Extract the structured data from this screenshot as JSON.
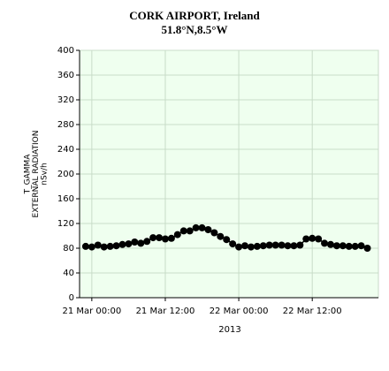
{
  "chart_data": {
    "type": "line",
    "title": "CORK AIRPORT, Ireland",
    "subtitle": "51.8°N,8.5°W",
    "ylabel": [
      "T_GAMMA",
      "EXTERNAL RADIATION",
      "nSv/h"
    ],
    "xlabel": "2013",
    "x": [
      -1,
      0,
      1,
      2,
      3,
      4,
      5,
      6,
      7,
      8,
      9,
      10,
      11,
      12,
      13,
      14,
      15,
      16,
      17,
      18,
      19,
      20,
      21,
      22,
      23,
      24,
      25,
      26,
      27,
      28,
      29,
      30,
      31,
      32,
      33,
      34,
      35,
      36,
      37,
      38,
      39,
      40,
      41,
      42,
      43,
      44,
      45
    ],
    "series": [
      {
        "name": "T_GAMMA",
        "color": "#000000",
        "values": [
          83,
          82,
          85,
          82,
          83,
          84,
          86,
          87,
          90,
          88,
          91,
          97,
          97,
          95,
          96,
          102,
          108,
          108,
          113,
          113,
          110,
          105,
          99,
          94,
          87,
          82,
          84,
          82,
          83,
          84,
          85,
          85,
          85,
          84,
          84,
          85,
          95,
          96,
          95,
          88,
          86,
          84,
          84,
          83,
          83,
          84,
          80
        ]
      }
    ],
    "xlim": [
      -2,
      46.8
    ],
    "xticks": [
      {
        "value": 0,
        "label": "21 Mar 00:00"
      },
      {
        "value": 12,
        "label": "21 Mar 12:00"
      },
      {
        "value": 24,
        "label": "22 Mar 00:00"
      },
      {
        "value": 36,
        "label": "22 Mar 12:00"
      }
    ],
    "ylim": [
      0,
      400
    ],
    "yticks": [
      0,
      40,
      80,
      120,
      160,
      200,
      240,
      280,
      320,
      360,
      400
    ],
    "grid": true,
    "plot_background": "#efffef"
  }
}
